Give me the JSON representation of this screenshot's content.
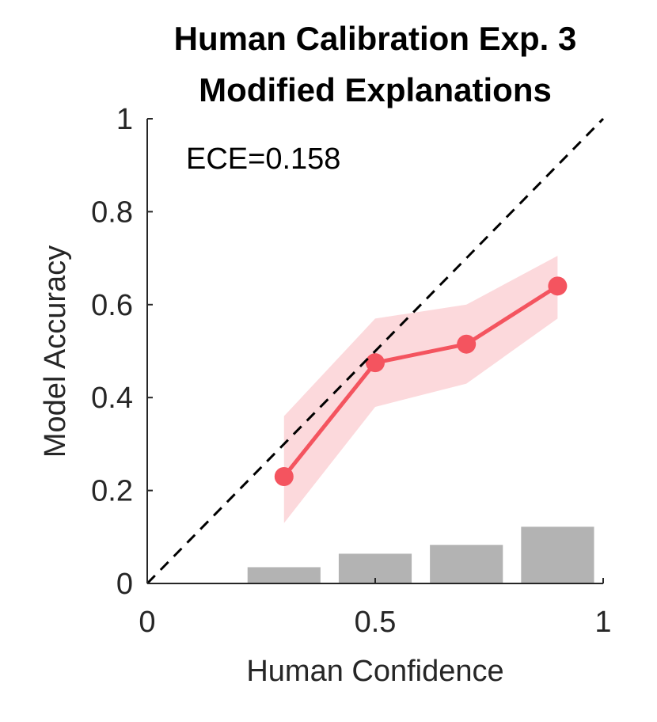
{
  "chart_data": {
    "type": "line",
    "title": [
      "Human Calibration Exp. 3",
      "Modified Explanations"
    ],
    "xlabel": "Human Confidence",
    "ylabel": "Model Accuracy",
    "xlim": [
      0,
      1
    ],
    "ylim": [
      0,
      1
    ],
    "xticks": [
      {
        "value": 0,
        "label": "0"
      },
      {
        "value": 0.5,
        "label": "0.5"
      },
      {
        "value": 1,
        "label": "1"
      }
    ],
    "yticks": [
      {
        "value": 0,
        "label": "0"
      },
      {
        "value": 0.2,
        "label": "0.2"
      },
      {
        "value": 0.4,
        "label": "0.4"
      },
      {
        "value": 0.6,
        "label": "0.6"
      },
      {
        "value": 0.8,
        "label": "0.8"
      },
      {
        "value": 1,
        "label": "1"
      }
    ],
    "annotation": "ECE=0.158",
    "grid": false,
    "reference_line": {
      "x": [
        0,
        1
      ],
      "y": [
        0,
        1
      ],
      "style": "dashed",
      "color": "#000000"
    },
    "series": [
      {
        "x": [
          0.3,
          0.5,
          0.7,
          0.9
        ],
        "values": [
          0.23,
          0.475,
          0.515,
          0.64
        ],
        "band_upper": [
          0.36,
          0.57,
          0.6,
          0.705
        ],
        "band_lower": [
          0.13,
          0.38,
          0.43,
          0.57
        ],
        "color": "#f4545f",
        "band_color": "#fcd9dc"
      }
    ],
    "histogram": {
      "centers": [
        0.3,
        0.5,
        0.7,
        0.9
      ],
      "width": 0.16,
      "heights": [
        0.035,
        0.064,
        0.083,
        0.122
      ],
      "color": "#b3b3b3"
    }
  }
}
